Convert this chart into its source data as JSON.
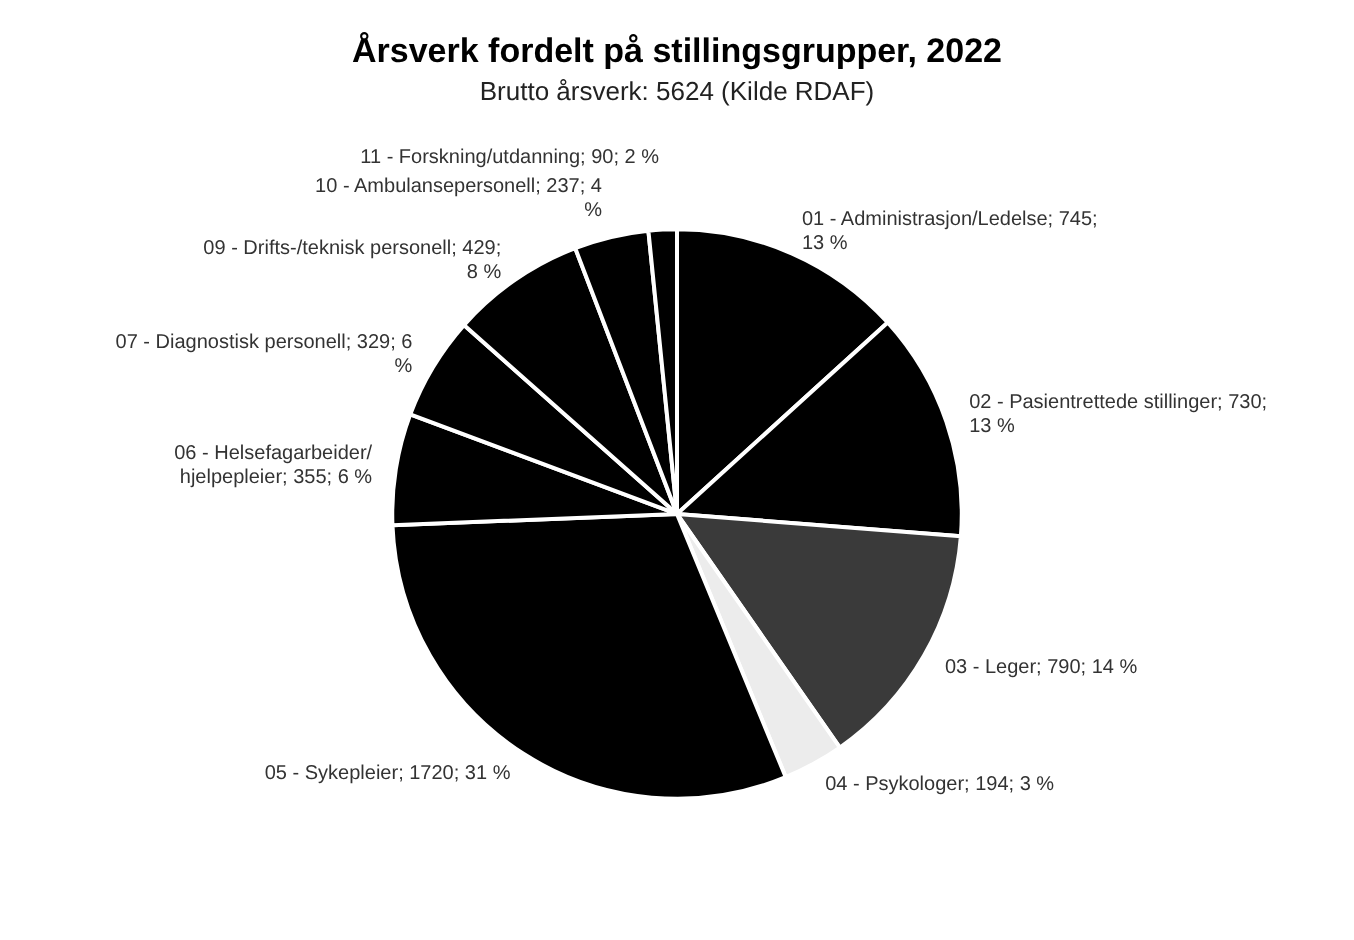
{
  "chart_data": {
    "type": "pie",
    "title": "Årsverk fordelt på stillingsgrupper, 2022",
    "subtitle": "Brutto årsverk: 5624 (Kilde RDAF)",
    "categories": [
      "01 - Administrasjon/Ledelse",
      "02 - Pasientrettede stillinger",
      "03 - Leger",
      "04 - Psykologer",
      "05 - Sykepleier",
      "06 - Helsefagarbeider/ hjelpepleier",
      "07 - Diagnostisk personell",
      "09 - Drifts-/teknisk personell",
      "10 - Ambulansepersonell",
      "11 - Forskning/utdanning"
    ],
    "values": [
      745,
      730,
      790,
      194,
      1720,
      355,
      329,
      429,
      237,
      90
    ],
    "value_labels": [
      "745; 13 %",
      "730; 13 %",
      "790; 14 %",
      "194; 3 %",
      "1720; 31 %",
      "355; 6 %",
      "329; 6 %",
      "429; 8 %",
      "237; 4 %",
      "90; 2 %"
    ],
    "colors": [
      "#000000",
      "#000000",
      "#3a3a3a",
      "#ececec",
      "#000000",
      "#000000",
      "#000000",
      "#000000",
      "#000000",
      "#000000"
    ],
    "legend": false
  }
}
